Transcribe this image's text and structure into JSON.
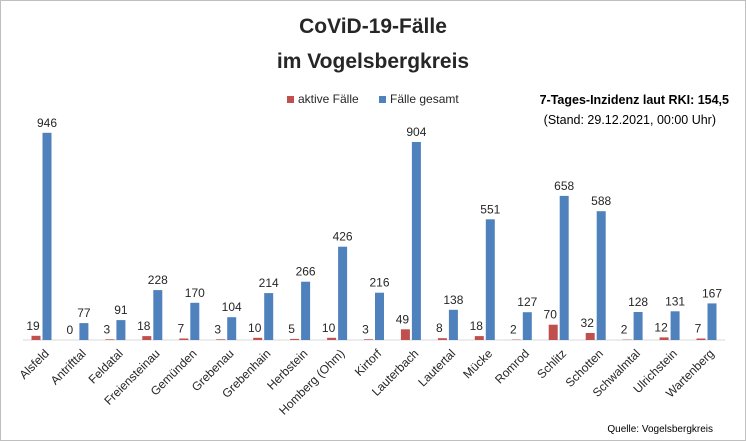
{
  "chart_data": {
    "type": "bar",
    "title": [
      "CoViD-19-Fälle",
      "im Vogelsbergkreis"
    ],
    "categories": [
      "Alsfeld",
      "Antrifttal",
      "Feldatal",
      "Freiensteinau",
      "Gemünden",
      "Grebenau",
      "Grebenhain",
      "Herbstein",
      "Homberg (Ohm)",
      "Kirtorf",
      "Lauterbach",
      "Lautertal",
      "Mücke",
      "Romrod",
      "Schlitz",
      "Schotten",
      "Schwalmtal",
      "Ulrichstein",
      "Wartenberg"
    ],
    "series": [
      {
        "name": "aktive Fälle",
        "color": "#c0504d",
        "values": [
          19,
          0,
          3,
          18,
          7,
          3,
          10,
          5,
          10,
          3,
          49,
          8,
          18,
          2,
          70,
          32,
          2,
          12,
          7
        ]
      },
      {
        "name": "Fälle gesamt",
        "color": "#4f81bd",
        "values": [
          946,
          77,
          91,
          228,
          170,
          104,
          214,
          266,
          426,
          216,
          904,
          138,
          551,
          127,
          658,
          588,
          128,
          131,
          167
        ]
      }
    ],
    "ylim": [
      0,
      1000
    ],
    "grid": false,
    "legend_position": "top",
    "xlabel": "",
    "ylabel": ""
  },
  "info": {
    "incidence": "7-Tages-Inzidenz laut RKI: 154,5",
    "stand": "(Stand: 29.12.2021, 00:00 Uhr)"
  },
  "source": "Quelle: Vogelsbergkreis"
}
